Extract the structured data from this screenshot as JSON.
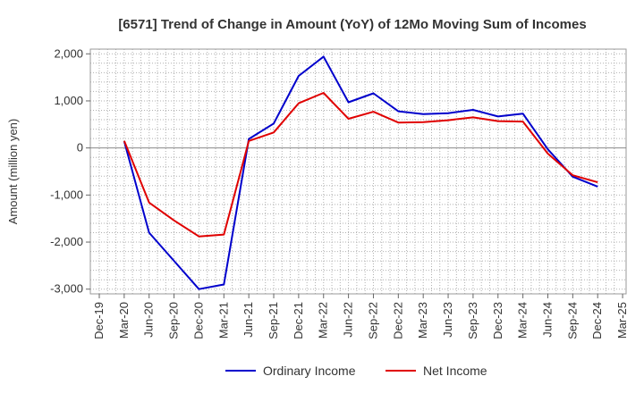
{
  "chart_data": {
    "type": "line",
    "title": "[6571]  Trend of Change in Amount (YoY) of 12Mo Moving Sum of Incomes",
    "xlabel": "",
    "ylabel": "Amount (million yen)",
    "ylim": [
      -3100,
      2100
    ],
    "yticks": [
      -3000,
      -2000,
      -1000,
      0,
      1000,
      2000
    ],
    "ytick_labels": [
      "-3,000",
      "-2,000",
      "-1,000",
      "0",
      "1,000",
      "2,000"
    ],
    "x_tick_labels": [
      "Dec-19",
      "Mar-20",
      "Jun-20",
      "Sep-20",
      "Dec-20",
      "Mar-21",
      "Jun-21",
      "Sep-21",
      "Dec-21",
      "Mar-22",
      "Jun-22",
      "Sep-22",
      "Dec-22",
      "Mar-23",
      "Jun-23",
      "Sep-23",
      "Dec-23",
      "Mar-24",
      "Jun-24",
      "Sep-24",
      "Dec-24",
      "Mar-25"
    ],
    "grid": true,
    "legend_position": "bottom",
    "series": [
      {
        "name": "Ordinary Income",
        "color": "#0000cc",
        "x": [
          "Mar-20",
          "Jun-20",
          "Sep-20",
          "Dec-20",
          "Mar-21",
          "Jun-21",
          "Sep-21",
          "Dec-21",
          "Mar-22",
          "Jun-22",
          "Sep-22",
          "Dec-22",
          "Mar-23",
          "Jun-23",
          "Sep-23",
          "Dec-23",
          "Mar-24",
          "Jun-24",
          "Sep-24",
          "Dec-24"
        ],
        "values": [
          140,
          -1800,
          -2400,
          -3000,
          -2900,
          190,
          520,
          1530,
          1940,
          970,
          1160,
          780,
          720,
          740,
          810,
          670,
          730,
          -30,
          -610,
          -820
        ]
      },
      {
        "name": "Net Income",
        "color": "#e00000",
        "x": [
          "Mar-20",
          "Jun-20",
          "Sep-20",
          "Dec-20",
          "Mar-21",
          "Jun-21",
          "Sep-21",
          "Dec-21",
          "Mar-22",
          "Jun-22",
          "Sep-22",
          "Dec-22",
          "Mar-23",
          "Jun-23",
          "Sep-23",
          "Dec-23",
          "Mar-24",
          "Jun-24",
          "Sep-24",
          "Dec-24"
        ],
        "values": [
          150,
          -1160,
          -1540,
          -1880,
          -1840,
          150,
          330,
          950,
          1170,
          620,
          770,
          540,
          550,
          590,
          650,
          570,
          560,
          -120,
          -580,
          -730
        ]
      }
    ]
  }
}
